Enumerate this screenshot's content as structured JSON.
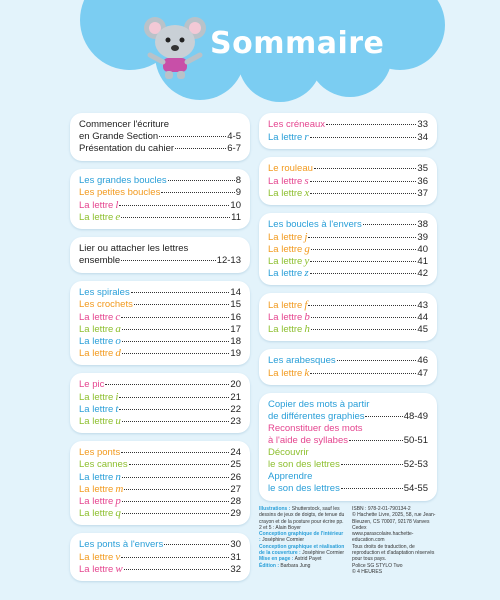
{
  "header": {
    "title": "Sommaire"
  },
  "columns": [
    {
      "boxes": [
        {
          "entries": [
            {
              "lines": [
                "Commencer l'écriture",
                "en Grande Section"
              ],
              "page": "4-5",
              "color": "#222222"
            },
            {
              "lines": [
                "Présentation du cahier"
              ],
              "page": "6-7",
              "color": "#222222"
            }
          ]
        },
        {
          "entries": [
            {
              "lines": [
                "Les grandes boucles"
              ],
              "page": 8,
              "color": "#2a9fd8"
            },
            {
              "lines": [
                "Les petites boucles"
              ],
              "page": 9,
              "color": "#f29a1e"
            },
            {
              "lines": [
                "La lettre"
              ],
              "letter": "l",
              "page": 10,
              "color": "#e5458f"
            },
            {
              "lines": [
                "La lettre"
              ],
              "letter": "e",
              "page": 11,
              "color": "#8dbf2e"
            }
          ]
        },
        {
          "entries": [
            {
              "lines": [
                "Lier ou attacher les lettres",
                "ensemble"
              ],
              "page": "12-13",
              "color": "#222222"
            }
          ]
        },
        {
          "entries": [
            {
              "lines": [
                "Les spirales"
              ],
              "page": 14,
              "color": "#2a9fd8"
            },
            {
              "lines": [
                "Les crochets"
              ],
              "page": 15,
              "color": "#f29a1e"
            },
            {
              "lines": [
                "La lettre"
              ],
              "letter": "c",
              "page": 16,
              "color": "#e5458f"
            },
            {
              "lines": [
                "La lettre"
              ],
              "letter": "a",
              "page": 17,
              "color": "#8dbf2e"
            },
            {
              "lines": [
                "La lettre"
              ],
              "letter": "o",
              "page": 18,
              "color": "#2a9fd8"
            },
            {
              "lines": [
                "La lettre"
              ],
              "letter": "d",
              "page": 19,
              "color": "#f29a1e"
            }
          ]
        },
        {
          "entries": [
            {
              "lines": [
                "Le pic"
              ],
              "page": 20,
              "color": "#e5458f"
            },
            {
              "lines": [
                "La lettre"
              ],
              "letter": "i",
              "page": 21,
              "color": "#8dbf2e"
            },
            {
              "lines": [
                "La lettre"
              ],
              "letter": "t",
              "page": 22,
              "color": "#2a9fd8"
            },
            {
              "lines": [
                "La lettre"
              ],
              "letter": "u",
              "page": 23,
              "color": "#8dbf2e"
            }
          ]
        },
        {
          "entries": [
            {
              "lines": [
                "Les ponts"
              ],
              "page": 24,
              "color": "#f29a1e"
            },
            {
              "lines": [
                "Les cannes"
              ],
              "page": 25,
              "color": "#8dbf2e"
            },
            {
              "lines": [
                "La lettre"
              ],
              "letter": "n",
              "page": 26,
              "color": "#2a9fd8"
            },
            {
              "lines": [
                "La lettre"
              ],
              "letter": "m",
              "page": 27,
              "color": "#f29a1e"
            },
            {
              "lines": [
                "La lettre"
              ],
              "letter": "p",
              "page": 28,
              "color": "#e5458f"
            },
            {
              "lines": [
                "La lettre"
              ],
              "letter": "q",
              "page": 29,
              "color": "#8dbf2e"
            }
          ]
        },
        {
          "entries": [
            {
              "lines": [
                "Les ponts à l'envers"
              ],
              "page": 30,
              "color": "#2a9fd8"
            },
            {
              "lines": [
                "La lettre"
              ],
              "letter": "v",
              "page": 31,
              "color": "#f29a1e"
            },
            {
              "lines": [
                "La lettre"
              ],
              "letter": "w",
              "page": 32,
              "color": "#e5458f"
            }
          ]
        }
      ]
    },
    {
      "boxes": [
        {
          "entries": [
            {
              "lines": [
                "Les créneaux"
              ],
              "page": 33,
              "color": "#e5458f"
            },
            {
              "lines": [
                "La lettre"
              ],
              "letter": "r",
              "page": 34,
              "color": "#2a9fd8"
            }
          ]
        },
        {
          "entries": [
            {
              "lines": [
                "Le rouleau"
              ],
              "page": 35,
              "color": "#f29a1e"
            },
            {
              "lines": [
                "La lettre"
              ],
              "letter": "s",
              "page": 36,
              "color": "#e5458f"
            },
            {
              "lines": [
                "La lettre"
              ],
              "letter": "x",
              "page": 37,
              "color": "#8dbf2e"
            }
          ]
        },
        {
          "entries": [
            {
              "lines": [
                "Les boucles à l'envers"
              ],
              "page": 38,
              "color": "#2a9fd8"
            },
            {
              "lines": [
                "La lettre"
              ],
              "letter": "j",
              "page": 39,
              "color": "#f29a1e"
            },
            {
              "lines": [
                "La lettre"
              ],
              "letter": "g",
              "page": 40,
              "color": "#f29a1e"
            },
            {
              "lines": [
                "La lettre"
              ],
              "letter": "y",
              "page": 41,
              "color": "#8dbf2e"
            },
            {
              "lines": [
                "La lettre"
              ],
              "letter": "z",
              "page": 42,
              "color": "#2a9fd8"
            }
          ]
        },
        {
          "entries": [
            {
              "lines": [
                "La lettre"
              ],
              "letter": "f",
              "page": 43,
              "color": "#f29a1e"
            },
            {
              "lines": [
                "La lettre"
              ],
              "letter": "b",
              "page": 44,
              "color": "#e5458f"
            },
            {
              "lines": [
                "La lettre"
              ],
              "letter": "h",
              "page": 45,
              "color": "#8dbf2e"
            }
          ]
        },
        {
          "entries": [
            {
              "lines": [
                "Les arabesques"
              ],
              "page": 46,
              "color": "#2a9fd8"
            },
            {
              "lines": [
                "La lettre"
              ],
              "letter": "k",
              "page": 47,
              "color": "#f29a1e"
            }
          ]
        },
        {
          "entries": [
            {
              "lines": [
                "Copier des mots à partir",
                "de différentes graphies"
              ],
              "page": "48-49",
              "color": "#2a9fd8"
            },
            {
              "lines": [
                "Reconstituer des mots",
                "à l'aide de syllabes"
              ],
              "page": "50-51",
              "color": "#e5458f"
            },
            {
              "lines": [
                "Découvrir",
                "le son des lettres"
              ],
              "page": "52-53",
              "color": "#8dbf2e"
            },
            {
              "lines": [
                "Apprendre",
                "le son des lettres"
              ],
              "page": "54-55",
              "color": "#2a9fd8"
            }
          ]
        }
      ]
    }
  ],
  "credits": {
    "left": [
      {
        "label": "Illustrations :",
        "text": "Shutterstock, sauf les dessins de jeux de doigts, de tenue du crayon et de la posture pour écrire pp. 2 et 5 : Alain Boyer"
      },
      {
        "label": "Conception graphique de l'intérieur :",
        "text": "Joséphine Cormier"
      },
      {
        "label": "Conception graphique et réalisation de la couverture :",
        "text": "Joséphine Cormier"
      },
      {
        "label": "Mise en page :",
        "text": "Astrid Payet"
      },
      {
        "label": "Édition :",
        "text": "Barbara Jung"
      }
    ],
    "right": [
      "ISBN : 978-2-01-790134-2",
      "© Hachette Livre, 2025, 58, rue Jean-Bleuzen, CS 70007, 92178 Vanves Cedex",
      "www.parascolaire.hachette-education.com",
      "Tous droits de traduction, de reproduction et d'adaptation réservés pour tous pays.",
      "Police SG STYLO Two",
      "© 4 HEURES"
    ]
  }
}
